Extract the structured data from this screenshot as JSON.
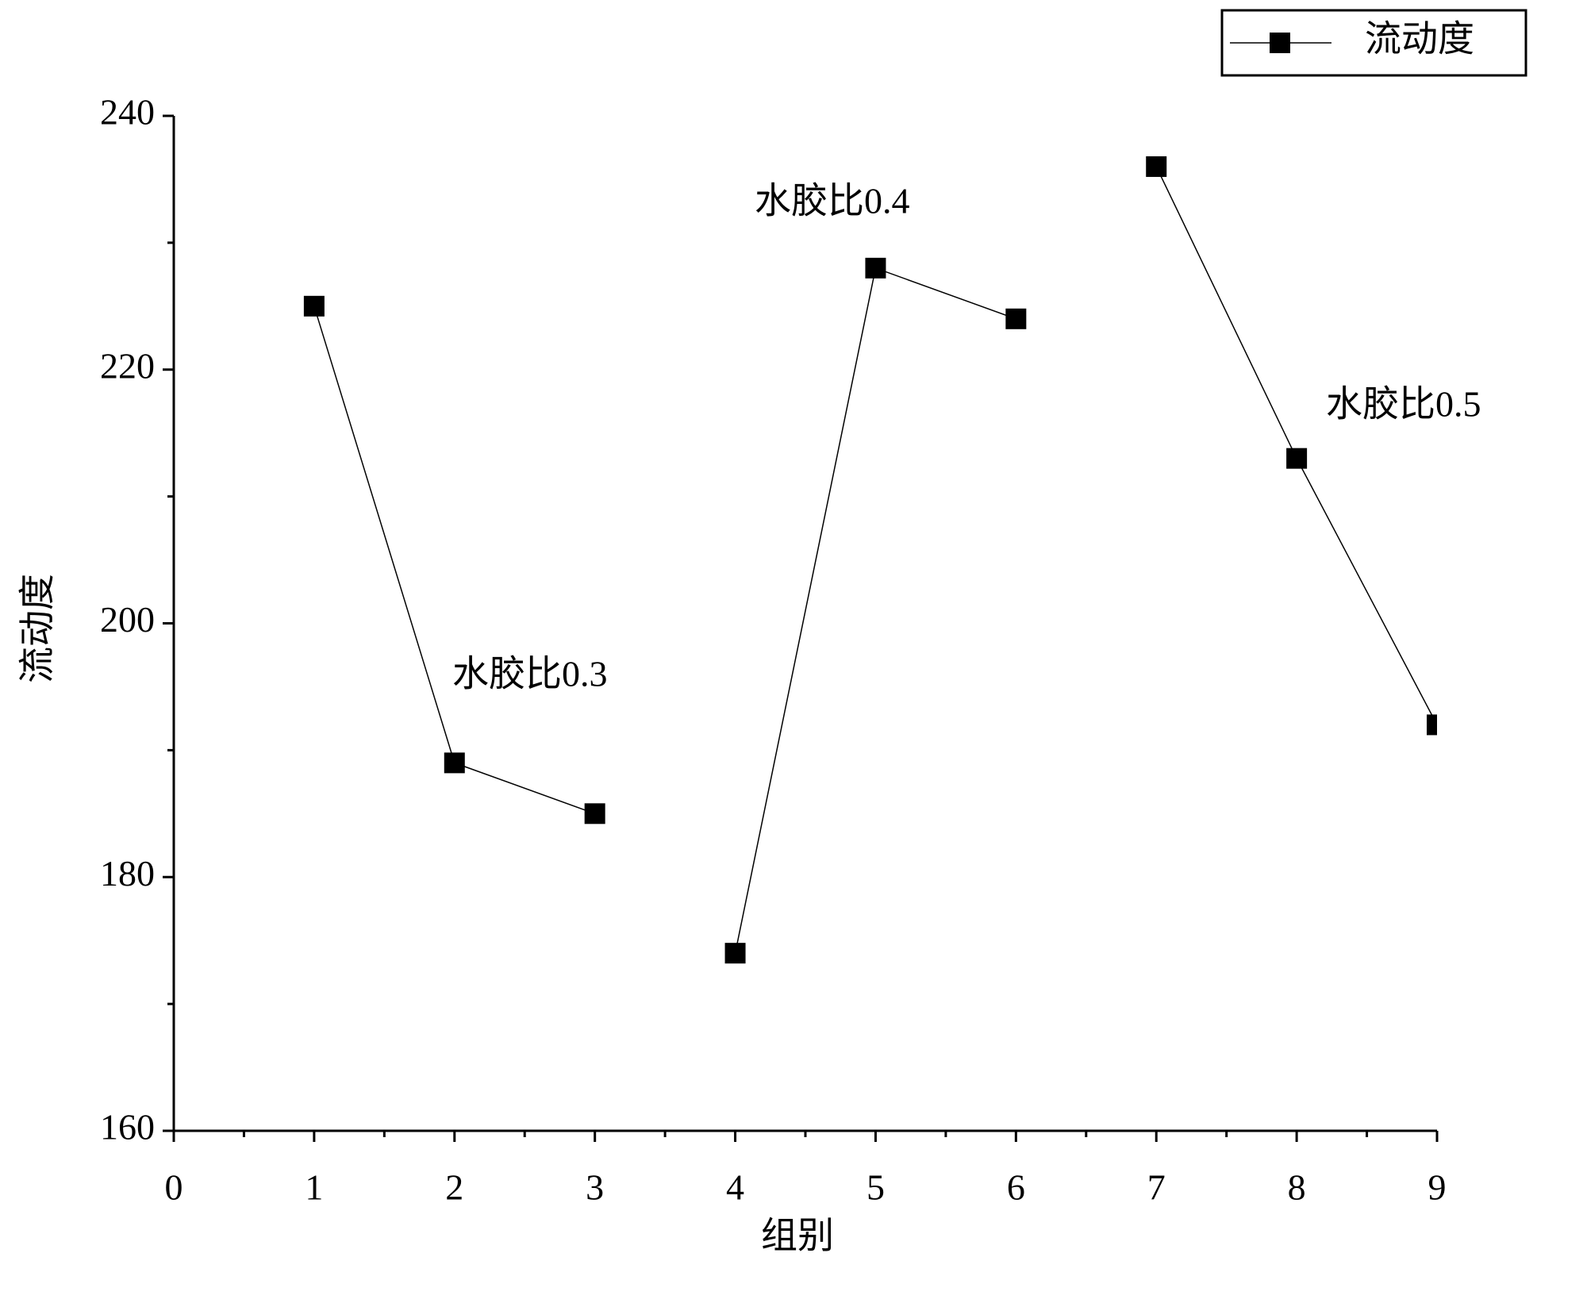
{
  "chart_data": {
    "type": "line",
    "x_label": "组别",
    "y_label": "流动度",
    "series": [
      {
        "name": "流动度",
        "color": "#000000",
        "x": [
          1,
          2,
          3
        ],
        "values": [
          225,
          189,
          185
        ]
      },
      {
        "color": "#000000",
        "x": [
          4,
          5,
          6
        ],
        "values": [
          174,
          228,
          224
        ]
      },
      {
        "color": "#000000",
        "x": [
          7,
          8,
          9
        ],
        "values": [
          236,
          213,
          192
        ]
      }
    ],
    "annotations": [
      "水胶比0.3",
      "水胶比0.4",
      "水胶比0.5"
    ],
    "xlim": [
      0,
      9
    ],
    "xticks": [
      0,
      1,
      2,
      3,
      4,
      5,
      6,
      7,
      8,
      9
    ],
    "xminorticks": [
      0.5,
      1.5,
      2.5,
      3.5,
      4.5,
      5.5,
      6.5,
      7.5,
      8.5
    ],
    "ylim": [
      160,
      240
    ],
    "yticks": [
      160,
      180,
      200,
      220,
      240
    ],
    "yminorticks": [
      170,
      190,
      210,
      230
    ],
    "marker": "square",
    "grid": false,
    "legend": "top-right"
  }
}
